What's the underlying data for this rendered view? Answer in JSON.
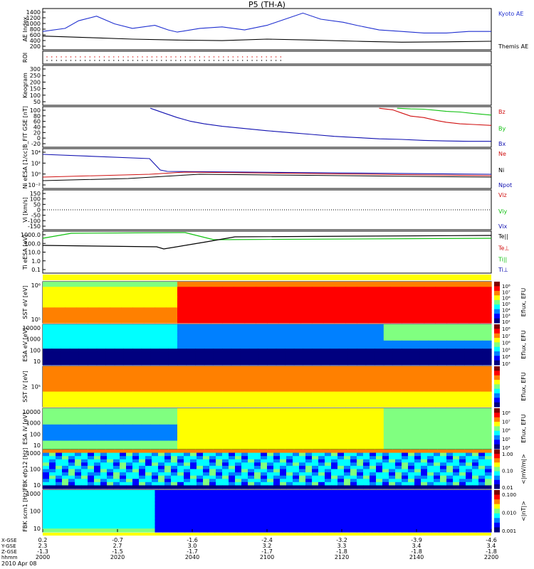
{
  "title": "P5 (TH-A)",
  "date_label": "2010 Apr 08",
  "colors": {
    "kyoto": "#1f2fd0",
    "themis": "#000000",
    "red": "#d01010",
    "green": "#10c010",
    "blue": "#1010b0"
  },
  "chart_data": [
    {
      "type": "line",
      "ylabel": "AE Index",
      "yticks": [
        "1400",
        "1200",
        "1000",
        "800",
        "600",
        "400",
        "200"
      ],
      "series": [
        {
          "name": "Kyoto AE",
          "color": "#1f2fd0",
          "x": [
            0,
            5,
            8,
            12,
            16,
            20,
            25,
            28,
            30,
            35,
            40,
            45,
            50,
            55,
            58,
            62,
            67,
            70,
            75,
            80,
            85,
            90,
            95,
            100
          ],
          "y": [
            700,
            800,
            1050,
            1200,
            950,
            800,
            900,
            750,
            680,
            800,
            850,
            750,
            900,
            1150,
            1300,
            1100,
            1000,
            900,
            750,
            700,
            650,
            650,
            700,
            700
          ]
        },
        {
          "name": "Themis AE",
          "color": "#000000",
          "x": [
            0,
            10,
            20,
            30,
            40,
            50,
            60,
            70,
            80,
            90,
            100
          ],
          "y": [
            550,
            500,
            450,
            420,
            400,
            450,
            420,
            380,
            350,
            360,
            380
          ]
        }
      ]
    },
    {
      "type": "scatter",
      "ylabel": "ROI",
      "yticks": []
    },
    {
      "type": "line",
      "ylabel": "Keogram",
      "yticks": [
        "300",
        "250",
        "200",
        "150",
        "100",
        "50"
      ]
    },
    {
      "type": "line",
      "ylabel": "B_FIT GSE [nT]",
      "yticks": [
        "100",
        "80",
        "60",
        "40",
        "20",
        "0",
        "-20"
      ],
      "series": [
        {
          "name": "Bz",
          "color": "#d01010",
          "x": [
            75,
            78,
            80,
            82,
            85,
            88,
            90,
            93,
            96,
            100
          ],
          "y": [
            100,
            95,
            85,
            75,
            70,
            60,
            55,
            50,
            48,
            45
          ]
        },
        {
          "name": "By",
          "color": "#10c010",
          "x": [
            79,
            82,
            85,
            88,
            90,
            93,
            96,
            100
          ],
          "y": [
            100,
            98,
            97,
            93,
            90,
            88,
            83,
            78
          ]
        },
        {
          "name": "Bx",
          "color": "#1010b0",
          "x": [
            24,
            27,
            30,
            33,
            36,
            40,
            45,
            50,
            55,
            60,
            65,
            70,
            75,
            80,
            85,
            90,
            95,
            100
          ],
          "y": [
            100,
            85,
            70,
            58,
            50,
            42,
            35,
            28,
            22,
            16,
            10,
            6,
            2,
            0,
            -3,
            -5,
            -6,
            -6
          ]
        }
      ]
    },
    {
      "type": "line",
      "ylabel": "Ni eESA [1/cc]",
      "yticks": [
        "10⁴",
        "10²",
        "10⁰",
        "10⁻²"
      ],
      "series": [
        {
          "name": "Ne",
          "color": "#d01010"
        },
        {
          "name": "Ni",
          "color": "#000000"
        },
        {
          "name": "Npot",
          "color": "#1010b0"
        }
      ]
    },
    {
      "type": "line",
      "ylabel": "Vi [km/s]",
      "yticks": [
        "150",
        "100",
        "50",
        "0",
        "-50",
        "-100",
        "-150"
      ],
      "series": [
        {
          "name": "Viz",
          "color": "#d01010"
        },
        {
          "name": "Viy",
          "color": "#10c010"
        },
        {
          "name": "Vix",
          "color": "#1010b0"
        }
      ]
    },
    {
      "type": "line",
      "ylabel": "Ti eESA [eV]",
      "yticks": [
        "1000.0",
        "100.0",
        "10.0",
        "1.0",
        "0.1"
      ],
      "series": [
        {
          "name": "Te||",
          "color": "#000000"
        },
        {
          "name": "Te⊥",
          "color": "#d01010"
        },
        {
          "name": "Ti||",
          "color": "#10c010"
        },
        {
          "name": "Ti⊥",
          "color": "#1010b0"
        }
      ]
    },
    {
      "type": "heatmap",
      "ylabel": "SST eV [eV]",
      "yticks": [
        "10⁶",
        "10⁵"
      ],
      "colorbar_label": "Eflux, EFU",
      "colorbar_ticks": [
        "10⁸",
        "10⁷",
        "10⁶",
        "10⁵",
        "10⁴",
        "10³",
        "10²"
      ]
    },
    {
      "type": "heatmap",
      "ylabel": "ESA eV [eV]",
      "yticks": [
        "10000",
        "1000",
        "100",
        "10"
      ],
      "colorbar_label": "Eflux, EFU",
      "colorbar_ticks": [
        "10⁸",
        "10⁷",
        "10⁶",
        "10⁵",
        "10⁴",
        "10³"
      ]
    },
    {
      "type": "heatmap",
      "ylabel": "SST iV [eV]",
      "yticks": [
        "10⁵"
      ],
      "colorbar_label": "Eflux, EFU",
      "colorbar_ticks": []
    },
    {
      "type": "heatmap",
      "ylabel": "ESA iV [eV]",
      "yticks": [
        "10000",
        "1000",
        "100",
        "10"
      ],
      "colorbar_label": "Eflux, EFU",
      "colorbar_ticks": [
        "10⁸",
        "10⁷",
        "10⁶",
        "10⁵",
        "10⁴"
      ]
    },
    {
      "type": "heatmap",
      "ylabel": "FBK efp12 [Hz]",
      "yticks": [
        "1000",
        "100",
        "10"
      ],
      "colorbar_label": "<|mV/m|>",
      "colorbar_ticks": [
        "1.00",
        "0.10",
        "0.01"
      ]
    },
    {
      "type": "heatmap",
      "ylabel": "FBK scm1 [Hz]",
      "yticks": [
        "1000",
        "100",
        "10"
      ],
      "colorbar_label": "<|nT|>",
      "colorbar_ticks": [
        "0.100",
        "0.010",
        "0.001"
      ]
    }
  ],
  "x_axis": {
    "row_labels": [
      "X-GSE",
      "Y-GSE",
      "Z-GSE",
      "hhmm"
    ],
    "ticks": [
      {
        "x": "0.2",
        "y": "2.3",
        "z": "-1.3",
        "t": "2000"
      },
      {
        "x": "-0.7",
        "y": "2.7",
        "z": "-1.5",
        "t": "2020"
      },
      {
        "x": "-1.6",
        "y": "3.0",
        "z": "-1.7",
        "t": "2040"
      },
      {
        "x": "-2.4",
        "y": "3.2",
        "z": "-1.7",
        "t": "2100"
      },
      {
        "x": "-3.2",
        "y": "3.3",
        "z": "-1.8",
        "t": "2120"
      },
      {
        "x": "-3.9",
        "y": "3.4",
        "z": "-1.8",
        "t": "2140"
      },
      {
        "x": "-4.6",
        "y": "3.4",
        "z": "-1.8",
        "t": "2200"
      }
    ]
  }
}
